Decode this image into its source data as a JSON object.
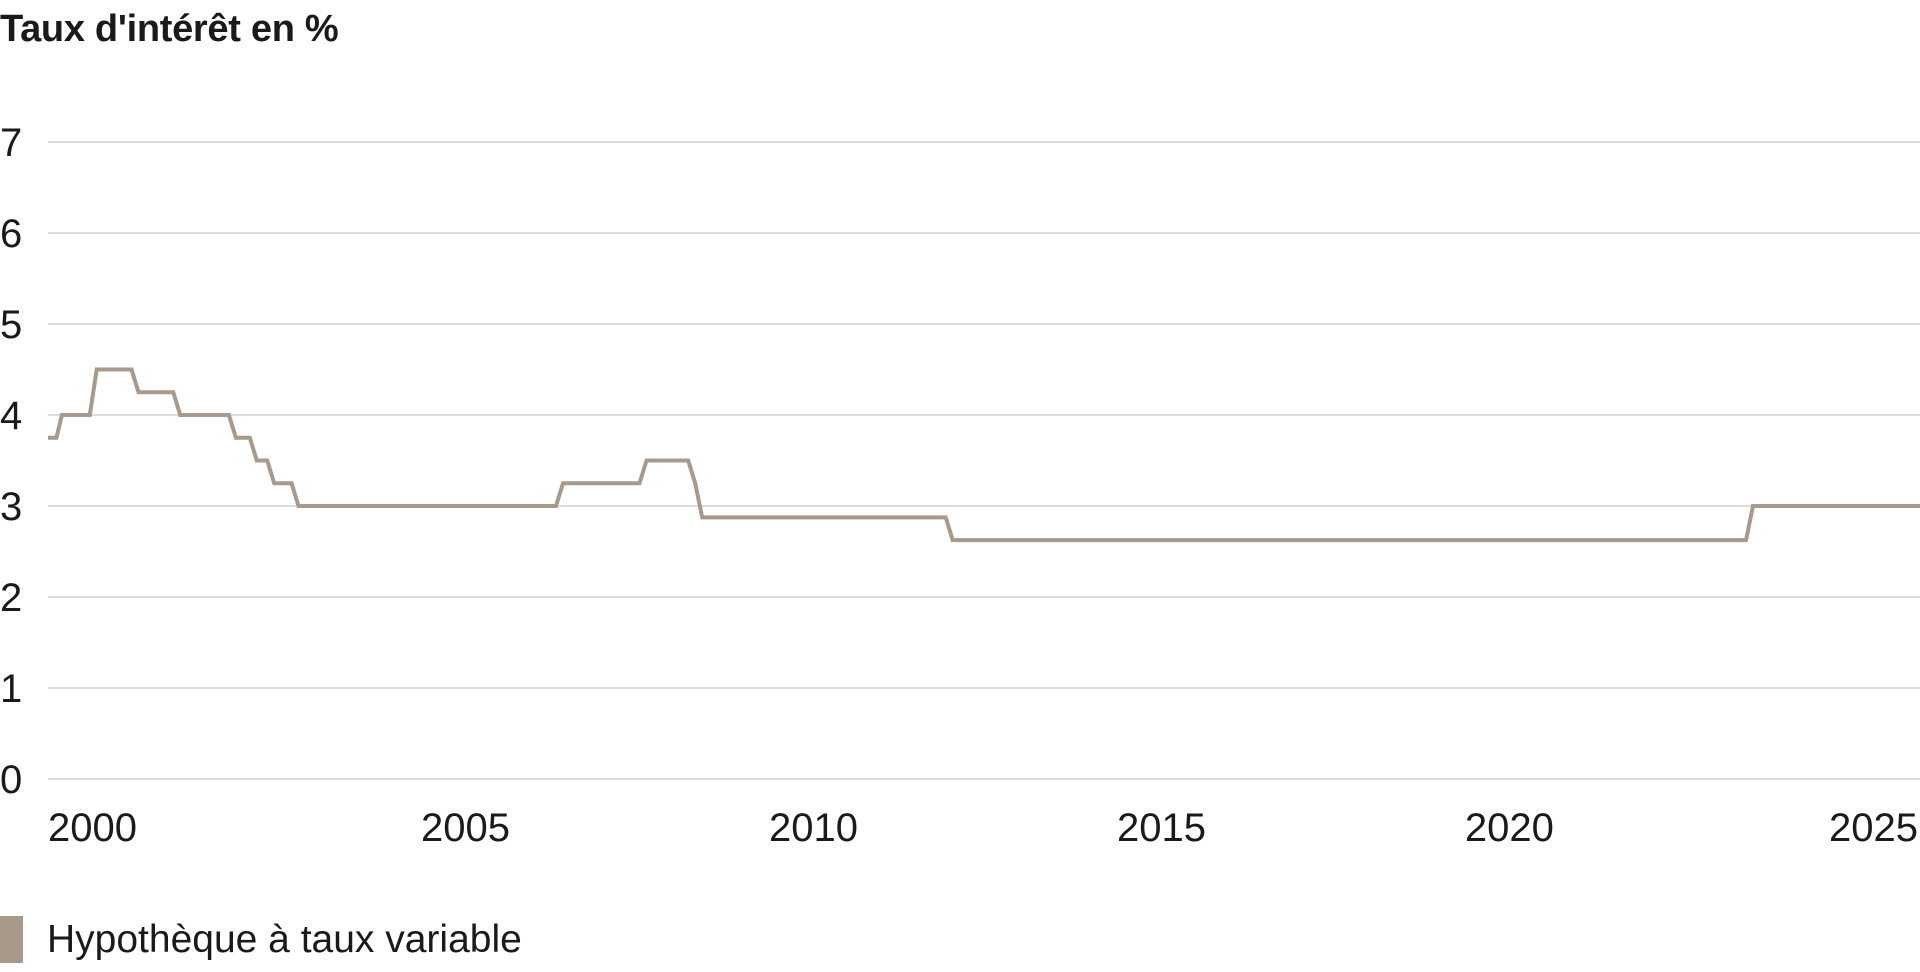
{
  "chart_data": {
    "type": "line",
    "title": "Taux d'intérêt en %",
    "xlabel": "",
    "ylabel": "",
    "ylim": [
      0,
      7
    ],
    "xlim": [
      1999.0,
      2025.9
    ],
    "yticks": [
      "0",
      "1",
      "2",
      "3",
      "4",
      "5",
      "6",
      "7"
    ],
    "xticks": [
      "2000",
      "2005",
      "2010",
      "2015",
      "2020",
      "2025"
    ],
    "grid": true,
    "legend_position": "bottom-left",
    "series": [
      {
        "name": "Hypothèque à taux variable",
        "color": "#a8998a",
        "points": [
          [
            1999.0,
            3.75
          ],
          [
            1999.12,
            3.75
          ],
          [
            1999.2,
            4.0
          ],
          [
            1999.6,
            4.0
          ],
          [
            1999.7,
            4.5
          ],
          [
            2000.2,
            4.5
          ],
          [
            2000.3,
            4.25
          ],
          [
            2000.8,
            4.25
          ],
          [
            2000.9,
            4.0
          ],
          [
            2001.6,
            4.0
          ],
          [
            2001.7,
            3.75
          ],
          [
            2001.9,
            3.75
          ],
          [
            2002.0,
            3.5
          ],
          [
            2002.15,
            3.5
          ],
          [
            2002.25,
            3.25
          ],
          [
            2002.5,
            3.25
          ],
          [
            2002.6,
            3.0
          ],
          [
            2006.3,
            3.0
          ],
          [
            2006.4,
            3.25
          ],
          [
            2007.5,
            3.25
          ],
          [
            2007.6,
            3.5
          ],
          [
            2008.2,
            3.5
          ],
          [
            2008.3,
            3.25
          ],
          [
            2008.4,
            2.875
          ],
          [
            2011.9,
            2.875
          ],
          [
            2012.0,
            2.625
          ],
          [
            2023.4,
            2.625
          ],
          [
            2023.5,
            3.0
          ],
          [
            2025.9,
            3.0
          ]
        ]
      }
    ]
  },
  "legend": {
    "label": "Hypothèque à taux variable",
    "color": "#a8998a"
  }
}
